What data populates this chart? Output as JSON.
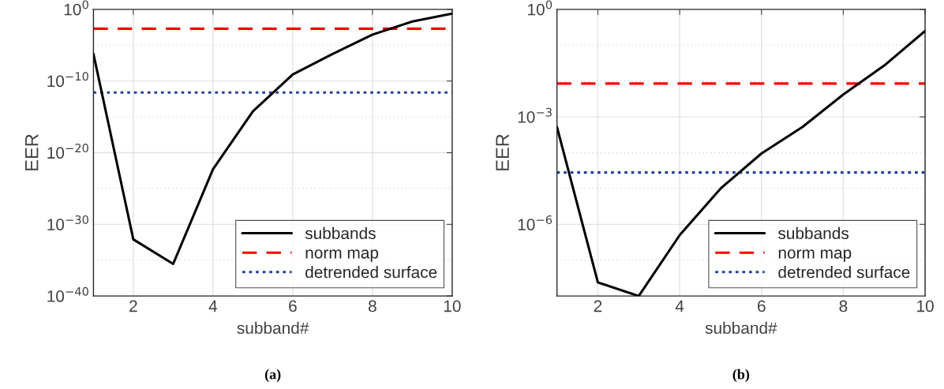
{
  "chart_data": [
    {
      "type": "line",
      "xlabel": "subband#",
      "ylabel": "EER",
      "log": "y",
      "grid": true,
      "legend": "bottom right",
      "x": [
        1,
        2,
        3,
        4,
        5,
        6,
        7,
        8,
        9,
        10
      ],
      "series": [
        {
          "name": "subbands",
          "color": "#000000",
          "line_style": "solid",
          "values": [
            6e-07,
            8e-33,
            3e-36,
            5e-23,
            6e-15,
            8e-10,
            6e-07,
            0.0003,
            0.02,
            0.25
          ]
        }
      ],
      "ref_lines": [
        {
          "axis": "y",
          "value": 0.002,
          "label": "norm map",
          "color": "#ff0000",
          "line_style": "dashed"
        },
        {
          "axis": "y",
          "value": 2.5e-12,
          "label": "detrended surface",
          "color": "#2040a0",
          "line_style": "dotted"
        }
      ],
      "xlim": [
        1,
        10
      ],
      "xticks": [
        2,
        4,
        6,
        8,
        10
      ],
      "ylim": [
        1e-40,
        1
      ],
      "yticks": [
        {
          "value": 1e-40,
          "label": "10$^{−40}$"
        },
        {
          "value": 1e-35,
          "label": null
        },
        {
          "value": 1e-30,
          "label": "10$^{−30}$"
        },
        {
          "value": 1e-25,
          "label": null
        },
        {
          "value": 1e-20,
          "label": "10$^{−20}$"
        },
        {
          "value": 1e-15,
          "label": null
        },
        {
          "value": 1e-10,
          "label": "10$^{−10}$"
        },
        {
          "value": 1e-05,
          "label": null
        },
        {
          "value": 1,
          "label": "10$^{0}$"
        }
      ],
      "annotations": [
        "(a)"
      ]
    },
    {
      "type": "line",
      "xlabel": "subband#",
      "ylabel": "EER",
      "log": "y",
      "grid": true,
      "legend": "bottom right",
      "x": [
        1,
        2,
        3,
        4,
        5,
        6,
        7,
        8,
        9,
        10
      ],
      "series": [
        {
          "name": "subbands",
          "color": "#000000",
          "line_style": "solid",
          "values": [
            0.00052,
            2.4e-08,
            1e-08,
            5e-07,
            1e-05,
            9.5e-05,
            0.00052,
            0.0042,
            0.027,
            0.25
          ]
        }
      ],
      "ref_lines": [
        {
          "axis": "y",
          "value": 0.0085,
          "label": "norm map",
          "color": "#ff0000",
          "line_style": "dashed"
        },
        {
          "axis": "y",
          "value": 2.8e-05,
          "label": "detrended surface",
          "color": "#2040a0",
          "line_style": "dotted"
        }
      ],
      "xlim": [
        1,
        10
      ],
      "xticks": [
        2,
        4,
        6,
        8,
        10
      ],
      "ylim": [
        1e-08,
        1
      ],
      "yticks": [
        {
          "value": 1e-07,
          "label": null
        },
        {
          "value": 1e-06,
          "label": "10$^{−6}$"
        },
        {
          "value": 1e-05,
          "label": null
        },
        {
          "value": 0.0001,
          "label": null
        },
        {
          "value": 0.001,
          "label": "10$^{−3}$"
        },
        {
          "value": 0.01,
          "label": null
        },
        {
          "value": 0.1,
          "label": null
        },
        {
          "value": 1,
          "label": "10$^{0}$"
        }
      ],
      "annotations": [
        "(b)"
      ]
    }
  ]
}
